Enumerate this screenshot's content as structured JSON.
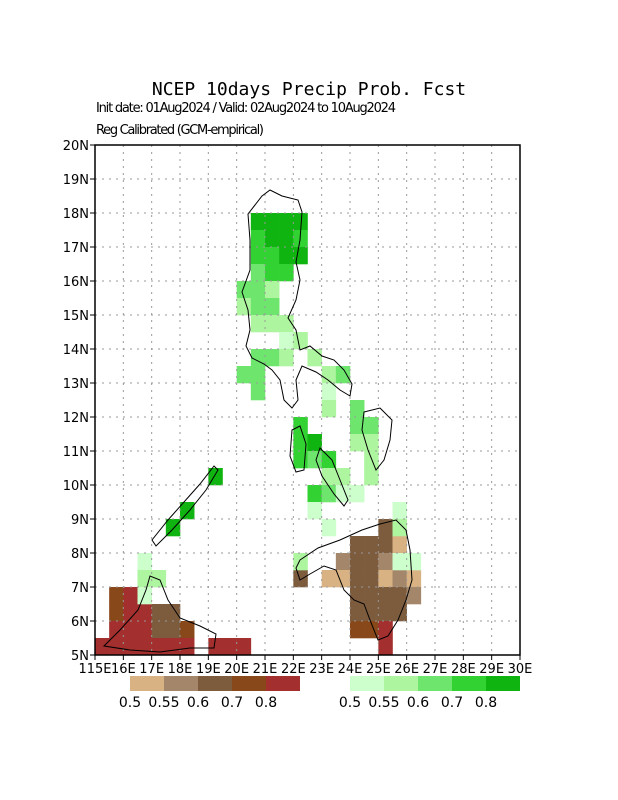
{
  "header": {
    "title": "NCEP 10days Precip Prob. Fcst",
    "line1": "Init date: 01Aug2024 / Valid: 02Aug2024 to 10Aug2024",
    "line2": "Reg Calibrated (GCM-empirical)"
  },
  "map": {
    "xlim": [
      115,
      130
    ],
    "ylim": [
      5,
      20
    ],
    "grid": true,
    "xticks": [
      {
        "value": 115,
        "label": "115E"
      },
      {
        "value": 116,
        "label": "16E"
      },
      {
        "value": 117,
        "label": "17E"
      },
      {
        "value": 118,
        "label": "18E"
      },
      {
        "value": 119,
        "label": "19E"
      },
      {
        "value": 120,
        "label": "20E"
      },
      {
        "value": 121,
        "label": "21E"
      },
      {
        "value": 122,
        "label": "22E"
      },
      {
        "value": 123,
        "label": "23E"
      },
      {
        "value": 124,
        "label": "24E"
      },
      {
        "value": 125,
        "label": "25E"
      },
      {
        "value": 126,
        "label": "26E"
      },
      {
        "value": 127,
        "label": "27E"
      },
      {
        "value": 128,
        "label": "28E"
      },
      {
        "value": 129,
        "label": "29E"
      },
      {
        "value": 130,
        "label": "30E"
      }
    ],
    "yticks": [
      {
        "value": 5,
        "label": "5N"
      },
      {
        "value": 6,
        "label": "6N"
      },
      {
        "value": 7,
        "label": "7N"
      },
      {
        "value": 8,
        "label": "8N"
      },
      {
        "value": 9,
        "label": "9N"
      },
      {
        "value": 10,
        "label": "10N"
      },
      {
        "value": 11,
        "label": "11N"
      },
      {
        "value": 12,
        "label": "12N"
      },
      {
        "value": 13,
        "label": "13N"
      },
      {
        "value": 14,
        "label": "14N"
      },
      {
        "value": 15,
        "label": "15N"
      },
      {
        "value": 16,
        "label": "16N"
      },
      {
        "value": 17,
        "label": "17N"
      },
      {
        "value": 18,
        "label": "18N"
      },
      {
        "value": 19,
        "label": "19N"
      },
      {
        "value": 20,
        "label": "20N"
      }
    ],
    "above_cells": [
      [
        120.5,
        17.5,
        4
      ],
      [
        121,
        17.5,
        4
      ],
      [
        121.5,
        17.5,
        4
      ],
      [
        122,
        17.5,
        4
      ],
      [
        120.5,
        17,
        3
      ],
      [
        121,
        17,
        4
      ],
      [
        121.5,
        17,
        4
      ],
      [
        122,
        17,
        3
      ],
      [
        120.5,
        16.5,
        3
      ],
      [
        121,
        16.5,
        3
      ],
      [
        121.5,
        16.5,
        4
      ],
      [
        122,
        16.5,
        4
      ],
      [
        120.5,
        16,
        2
      ],
      [
        121,
        16,
        3
      ],
      [
        121.5,
        16,
        3
      ],
      [
        120,
        15.5,
        2
      ],
      [
        120.5,
        15.5,
        2
      ],
      [
        121,
        15.5,
        1
      ],
      [
        120,
        15,
        1
      ],
      [
        120.5,
        15,
        2
      ],
      [
        121,
        15,
        2
      ],
      [
        120.5,
        14.5,
        1
      ],
      [
        121,
        14.5,
        1
      ],
      [
        121.5,
        14.5,
        1
      ],
      [
        121.5,
        14,
        0
      ],
      [
        122,
        14,
        1
      ],
      [
        120.5,
        13.5,
        2
      ],
      [
        121,
        13.5,
        2
      ],
      [
        121.5,
        13.5,
        1
      ],
      [
        122.5,
        13.5,
        1
      ],
      [
        120,
        13,
        2
      ],
      [
        120.5,
        13,
        2
      ],
      [
        123,
        13,
        1
      ],
      [
        123.5,
        13,
        2
      ],
      [
        120.5,
        12.5,
        2
      ],
      [
        123,
        12.5,
        0
      ],
      [
        123,
        12,
        1
      ],
      [
        124,
        12,
        2
      ],
      [
        122,
        11.5,
        3
      ],
      [
        124,
        11.5,
        2
      ],
      [
        124.5,
        11.5,
        2
      ],
      [
        122,
        11,
        3
      ],
      [
        122.5,
        11,
        4
      ],
      [
        124,
        11,
        1
      ],
      [
        124.5,
        11,
        1
      ],
      [
        122,
        10.5,
        3
      ],
      [
        122.5,
        10.5,
        2
      ],
      [
        123,
        10.5,
        3
      ],
      [
        124.5,
        10.5,
        1
      ],
      [
        119,
        10,
        4
      ],
      [
        123,
        10,
        1
      ],
      [
        123.5,
        10,
        1
      ],
      [
        124.5,
        10,
        1
      ],
      [
        122.5,
        9.5,
        3
      ],
      [
        123,
        9.5,
        2
      ],
      [
        123.5,
        9.5,
        0
      ],
      [
        124,
        9.5,
        0
      ],
      [
        118,
        9,
        4
      ],
      [
        122.5,
        9,
        0
      ],
      [
        125.5,
        9,
        0
      ],
      [
        117.5,
        8.5,
        4
      ],
      [
        123,
        8.5,
        0
      ],
      [
        125.5,
        8.5,
        1
      ],
      [
        125.5,
        7.5,
        0
      ],
      [
        126,
        7.5,
        0
      ],
      [
        122,
        7.5,
        1
      ],
      [
        116.5,
        7.5,
        0
      ],
      [
        116.5,
        7,
        1
      ],
      [
        117,
        7,
        1
      ],
      [
        116.5,
        6.5,
        0
      ]
    ],
    "below_cells": [
      [
        124,
        8,
        2
      ],
      [
        124.5,
        8,
        2
      ],
      [
        125,
        8,
        2
      ],
      [
        125,
        8.5,
        2
      ],
      [
        125.5,
        8,
        0
      ],
      [
        123.5,
        7.5,
        1
      ],
      [
        124,
        7.5,
        2
      ],
      [
        124.5,
        7.5,
        2
      ],
      [
        125,
        7.5,
        1
      ],
      [
        125.5,
        7.5,
        0
      ],
      [
        123,
        7,
        0
      ],
      [
        123.5,
        7,
        0
      ],
      [
        124,
        7,
        2
      ],
      [
        124.5,
        7,
        2
      ],
      [
        125,
        7,
        0
      ],
      [
        125.5,
        7,
        1
      ],
      [
        126,
        7,
        0
      ],
      [
        122,
        7,
        2
      ],
      [
        124,
        6.5,
        2
      ],
      [
        124.5,
        6.5,
        2
      ],
      [
        125,
        6.5,
        2
      ],
      [
        125.5,
        6.5,
        2
      ],
      [
        126,
        6.5,
        1
      ],
      [
        124,
        6,
        2
      ],
      [
        124.5,
        6,
        2
      ],
      [
        125,
        6,
        2
      ],
      [
        125.5,
        6,
        2
      ],
      [
        124,
        5.5,
        3
      ],
      [
        124.5,
        5.5,
        3
      ],
      [
        125,
        5.5,
        4
      ],
      [
        125,
        5,
        4
      ],
      [
        115.5,
        6.5,
        3
      ],
      [
        116,
        6.5,
        4
      ],
      [
        116.5,
        6.5,
        4
      ],
      [
        115.5,
        6,
        3
      ],
      [
        116,
        6,
        4
      ],
      [
        116.5,
        6,
        4
      ],
      [
        117,
        6,
        2
      ],
      [
        117.5,
        6,
        2
      ],
      [
        115.5,
        5.5,
        4
      ],
      [
        116,
        5.5,
        4
      ],
      [
        116.5,
        5.5,
        4
      ],
      [
        117,
        5.5,
        2
      ],
      [
        117.5,
        5.5,
        2
      ],
      [
        118,
        5.5,
        3
      ],
      [
        115,
        5,
        4
      ],
      [
        115.5,
        5,
        4
      ],
      [
        116,
        5,
        4
      ],
      [
        116.5,
        5,
        4
      ],
      [
        117,
        5,
        4
      ],
      [
        117.5,
        5,
        4
      ],
      [
        118,
        5,
        4
      ],
      [
        119,
        5,
        4
      ],
      [
        119.5,
        5,
        4
      ],
      [
        120,
        5,
        4
      ]
    ]
  },
  "legends": {
    "below": {
      "colors": [
        "#d8b283",
        "#a4866a",
        "#7d5c3e",
        "#88481a",
        "#a3302e"
      ],
      "labels": [
        0.5,
        0.55,
        0.6,
        0.7,
        0.8
      ]
    },
    "above": {
      "colors": [
        "#ccffcc",
        "#aef5a0",
        "#6ee66e",
        "#32d232",
        "#10b410"
      ],
      "labels": [
        0.5,
        0.55,
        0.6,
        0.7,
        0.8
      ]
    }
  }
}
